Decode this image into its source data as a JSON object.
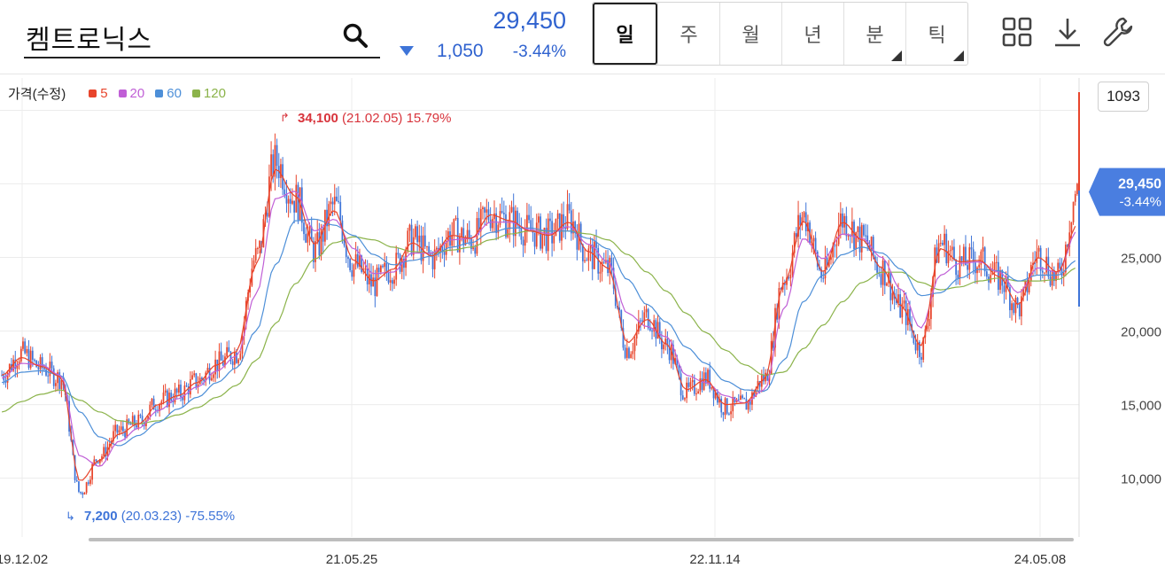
{
  "stock": {
    "name": "켐트로닉스",
    "price": "29,450",
    "change": "1,050",
    "change_pct": "-3.44%"
  },
  "period_tabs": [
    {
      "label": "일",
      "active": true,
      "has_menu": false
    },
    {
      "label": "주",
      "active": false,
      "has_menu": false
    },
    {
      "label": "월",
      "active": false,
      "has_menu": false
    },
    {
      "label": "년",
      "active": false,
      "has_menu": false
    },
    {
      "label": "분",
      "active": false,
      "has_menu": true
    },
    {
      "label": "틱",
      "active": false,
      "has_menu": true
    }
  ],
  "toolbar_icons": [
    "grid-layout-icon",
    "download-icon",
    "wrench-icon"
  ],
  "legend": {
    "label": "가격(수정)",
    "items": [
      {
        "label": "5",
        "color": "#e8452c"
      },
      {
        "label": "20",
        "color": "#c05fd6"
      },
      {
        "label": "60",
        "color": "#4d8fd8"
      },
      {
        "label": "120",
        "color": "#8bb34a"
      }
    ]
  },
  "count_badge": "1093",
  "colors": {
    "up": "#e8452c",
    "down": "#3e74d8",
    "price_tag_bg": "#4a7ee0",
    "grid": "#ececec"
  },
  "chart_data": {
    "type": "candlestick",
    "y_tick_labels": [
      "25,000",
      "20,000",
      "15,000",
      "10,000"
    ],
    "y_ticks": [
      25000,
      20000,
      15000,
      10000
    ],
    "x_tick_labels": [
      "19.12.02",
      "21.05.25",
      "22.11.14",
      "24.05.08"
    ],
    "ylim": [
      6000,
      37200
    ],
    "series_dates": [
      "19.11",
      "19.12",
      "20.01",
      "20.02",
      "20.03",
      "20.04",
      "20.05",
      "20.06",
      "20.07",
      "20.08",
      "20.09",
      "20.10",
      "20.11",
      "20.12",
      "21.01",
      "21.02",
      "21.03",
      "21.04",
      "21.05",
      "21.06",
      "21.07",
      "21.08",
      "21.09",
      "21.10",
      "21.11",
      "21.12",
      "22.01",
      "22.02",
      "22.03",
      "22.04",
      "22.05",
      "22.06",
      "22.07",
      "22.08",
      "22.09",
      "22.10",
      "22.11",
      "22.12",
      "23.01",
      "23.02",
      "23.03",
      "23.04",
      "23.05",
      "23.06",
      "23.07",
      "23.08",
      "23.09",
      "23.10",
      "23.11",
      "23.12",
      "24.01",
      "24.02",
      "24.03",
      "24.04",
      "24.05",
      "24.06"
    ],
    "close": [
      17000,
      18500,
      17500,
      16800,
      9000,
      11500,
      13200,
      13800,
      15200,
      15700,
      16600,
      17800,
      18500,
      25000,
      31500,
      29000,
      25500,
      28500,
      24500,
      23200,
      24300,
      26200,
      25000,
      26600,
      26200,
      28000,
      27500,
      26800,
      26500,
      27600,
      25200,
      24200,
      18800,
      21000,
      19000,
      15800,
      16800,
      14800,
      15000,
      16800,
      23600,
      27800,
      23800,
      27600,
      26200,
      24200,
      21500,
      18800,
      26000,
      24600,
      24800,
      23600,
      21600,
      25200,
      23600,
      29450
    ],
    "ma5": [
      17000,
      18200,
      17600,
      16900,
      9800,
      11200,
      13000,
      13700,
      15000,
      15600,
      16500,
      17700,
      18600,
      24500,
      31000,
      29200,
      25900,
      28200,
      24800,
      23400,
      24200,
      26000,
      25100,
      26500,
      26300,
      27900,
      27500,
      26800,
      26500,
      27400,
      25400,
      24300,
      19200,
      20800,
      19100,
      16000,
      16700,
      15000,
      15100,
      16700,
      23200,
      27500,
      24000,
      27400,
      26200,
      24300,
      21700,
      19000,
      25600,
      24700,
      24800,
      23700,
      21800,
      25000,
      24000,
      27200
    ],
    "ma20": [
      16800,
      17800,
      17700,
      17000,
      11500,
      10800,
      12500,
      13400,
      14600,
      15400,
      16200,
      17300,
      18300,
      22500,
      29000,
      29500,
      26800,
      27600,
      25600,
      23900,
      24000,
      25300,
      25300,
      26200,
      26300,
      27400,
      27400,
      26900,
      26600,
      27100,
      25900,
      24700,
      21200,
      20300,
      19600,
      17000,
      16500,
      15600,
      15100,
      16000,
      21500,
      26300,
      24900,
      26600,
      26300,
      25000,
      22800,
      20200,
      23800,
      24600,
      24700,
      24000,
      22600,
      24300,
      24000,
      26800
    ],
    "ma60": [
      16500,
      17200,
      17300,
      17000,
      14500,
      12800,
      12200,
      12900,
      13800,
      14700,
      15500,
      16500,
      17500,
      20000,
      24500,
      27500,
      27600,
      27200,
      26500,
      25200,
      24500,
      24800,
      25100,
      25700,
      26000,
      26700,
      27000,
      27000,
      26800,
      26800,
      26300,
      25600,
      23500,
      21800,
      20600,
      18900,
      17800,
      16600,
      16000,
      15900,
      18000,
      22000,
      23800,
      25200,
      25700,
      25300,
      24200,
      22400,
      22600,
      23600,
      24200,
      24100,
      23400,
      23800,
      23800,
      24800
    ],
    "ma120": [
      14500,
      15200,
      15700,
      16000,
      15300,
      14500,
      13900,
      13700,
      13900,
      14300,
      14800,
      15500,
      16300,
      18000,
      20500,
      23200,
      24900,
      26000,
      26400,
      26200,
      25700,
      25400,
      25300,
      25500,
      25700,
      26200,
      26600,
      26800,
      26800,
      26800,
      26600,
      26200,
      25200,
      24000,
      22700,
      21200,
      19900,
      18700,
      17700,
      17000,
      17200,
      18800,
      20400,
      22000,
      23300,
      24000,
      24000,
      23300,
      22800,
      23000,
      23400,
      23600,
      23400,
      23400,
      23500,
      24300
    ],
    "annotations": [
      {
        "kind": "high",
        "value": "34,100",
        "date": "(21.02.05)",
        "pct": "15.79%"
      },
      {
        "kind": "low",
        "value": "7,200",
        "date": "(20.03.23)",
        "pct": "-75.55%"
      }
    ],
    "last_price": {
      "value": "29,450",
      "pct": "-3.44%"
    }
  }
}
